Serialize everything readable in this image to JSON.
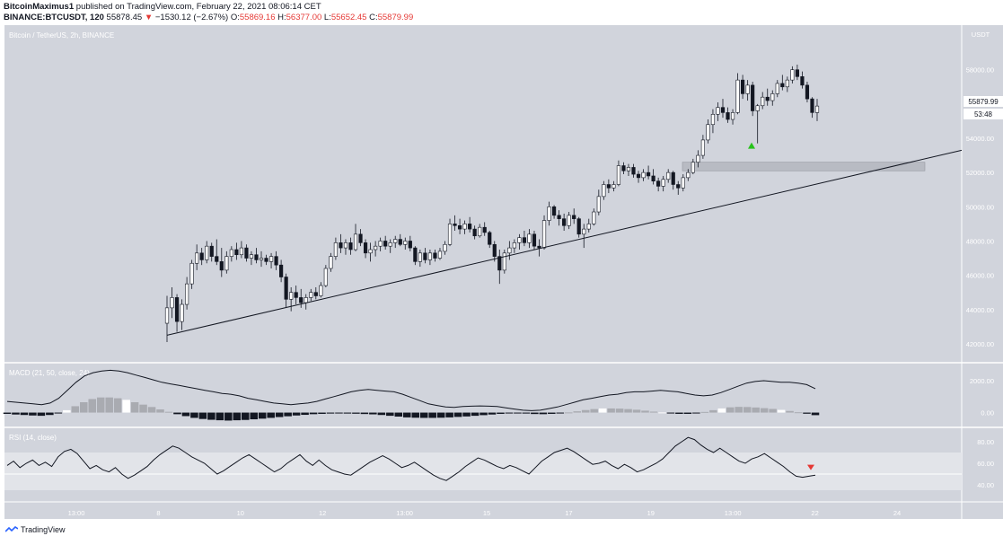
{
  "header": {
    "author": "BitcoinMaximus1",
    "published": "published on TradingView.com, February 22, 2021 08:06:14 CET",
    "symbol": "BINANCE:BTCUSDT, 120",
    "last": "55878.45",
    "change": "−1530.12 (−2.67%)",
    "o_label": "O:",
    "o": "55869.16",
    "h_label": "H:",
    "h": "56377.00",
    "l_label": "L:",
    "l": "55652.45",
    "c_label": "C:",
    "c": "55879.99"
  },
  "footer": {
    "brand": "TradingView"
  },
  "colors": {
    "background": "#d1d4dc",
    "up_body": "#ffffff",
    "down_body": "#131722",
    "trendline": "#131722",
    "buy_signal": "#26c21a",
    "sell_signal": "#e53935"
  },
  "chart_data": {
    "type": "candlestick",
    "title": "Bitcoin / TetherUS, 2h, BINANCE",
    "price_axis_unit": "USDT",
    "ylim": [
      41000,
      60500
    ],
    "y_ticks": [
      "58000.00",
      "56000.00",
      "54000.00",
      "52000.00",
      "50000.00",
      "48000.00",
      "46000.00",
      "44000.00",
      "42000.00"
    ],
    "x_ticks": [
      "13:00",
      "8",
      "10",
      "12",
      "13:00",
      "15",
      "17",
      "19",
      "13:00",
      "22",
      "24"
    ],
    "last_price_label": "55879.99",
    "countdown_label": "53:48",
    "grid": false,
    "trendline": {
      "from_price": 42500,
      "to_price": 53300,
      "description": "ascending support line"
    },
    "resistance_zone": {
      "low": 52100,
      "high": 52600
    },
    "buy_signal_price": 53600,
    "candles": [
      [
        43200,
        44800,
        42100,
        44100
      ],
      [
        44100,
        45300,
        43500,
        44700
      ],
      [
        44700,
        44900,
        42700,
        43300
      ],
      [
        43300,
        44600,
        42800,
        44300
      ],
      [
        44300,
        45900,
        44000,
        45500
      ],
      [
        45500,
        46900,
        45200,
        46700
      ],
      [
        46700,
        47800,
        46300,
        47300
      ],
      [
        47300,
        47600,
        46600,
        46900
      ],
      [
        46900,
        48000,
        46700,
        47700
      ],
      [
        47700,
        47900,
        46800,
        47100
      ],
      [
        47100,
        48100,
        46600,
        46800
      ],
      [
        46800,
        47600,
        45900,
        46300
      ],
      [
        46300,
        47400,
        46100,
        47100
      ],
      [
        47100,
        47700,
        46800,
        47500
      ],
      [
        47500,
        47900,
        46900,
        47200
      ],
      [
        47200,
        48000,
        47000,
        47600
      ],
      [
        47600,
        47800,
        46800,
        47000
      ],
      [
        47000,
        47400,
        46600,
        47200
      ],
      [
        47200,
        47600,
        46700,
        46900
      ],
      [
        46900,
        47400,
        46500,
        47000
      ],
      [
        47000,
        47200,
        46600,
        46800
      ],
      [
        46800,
        47300,
        46400,
        47100
      ],
      [
        47100,
        47400,
        46300,
        46600
      ],
      [
        46600,
        46900,
        45600,
        45900
      ],
      [
        45900,
        46100,
        44100,
        44600
      ],
      [
        44600,
        45300,
        43900,
        45000
      ],
      [
        45000,
        45400,
        44300,
        44700
      ],
      [
        44700,
        45200,
        44100,
        44400
      ],
      [
        44400,
        44900,
        44000,
        44700
      ],
      [
        44700,
        45200,
        44500,
        45000
      ],
      [
        45000,
        45300,
        44600,
        44800
      ],
      [
        44800,
        45600,
        44700,
        45400
      ],
      [
        45400,
        46600,
        45300,
        46400
      ],
      [
        46400,
        47300,
        46200,
        47100
      ],
      [
        47100,
        48200,
        46900,
        47900
      ],
      [
        47900,
        48400,
        47300,
        47600
      ],
      [
        47600,
        48100,
        47200,
        47900
      ],
      [
        47900,
        48200,
        47200,
        47500
      ],
      [
        47500,
        49000,
        47400,
        48400
      ],
      [
        48400,
        48700,
        47700,
        47900
      ],
      [
        47900,
        48100,
        47000,
        47300
      ],
      [
        47300,
        47900,
        46800,
        47500
      ],
      [
        47500,
        48000,
        47100,
        47700
      ],
      [
        47700,
        48200,
        47400,
        48000
      ],
      [
        48000,
        48300,
        47500,
        47700
      ],
      [
        47700,
        48100,
        47300,
        47900
      ],
      [
        47900,
        48300,
        47600,
        48100
      ],
      [
        48100,
        48400,
        47700,
        47800
      ],
      [
        47800,
        48200,
        47500,
        48000
      ],
      [
        48000,
        48300,
        47400,
        47600
      ],
      [
        47600,
        47700,
        46600,
        46800
      ],
      [
        46800,
        47500,
        46500,
        47300
      ],
      [
        47300,
        47600,
        46700,
        46900
      ],
      [
        46900,
        47500,
        46600,
        47300
      ],
      [
        47300,
        47500,
        46800,
        47000
      ],
      [
        47000,
        47600,
        46900,
        47400
      ],
      [
        47400,
        48000,
        47200,
        47800
      ],
      [
        47800,
        49300,
        47700,
        49000
      ],
      [
        49000,
        49500,
        48600,
        48900
      ],
      [
        48900,
        49300,
        48400,
        48700
      ],
      [
        48700,
        49200,
        48400,
        49000
      ],
      [
        49000,
        49400,
        48500,
        48700
      ],
      [
        48700,
        48900,
        48100,
        48300
      ],
      [
        48300,
        49000,
        48200,
        48800
      ],
      [
        48800,
        49100,
        48300,
        48500
      ],
      [
        48500,
        48600,
        47600,
        47800
      ],
      [
        47800,
        48000,
        46800,
        47100
      ],
      [
        47100,
        47500,
        45500,
        46300
      ],
      [
        46300,
        47500,
        46100,
        47300
      ],
      [
        47300,
        48000,
        46900,
        47600
      ],
      [
        47600,
        48100,
        47300,
        47900
      ],
      [
        47900,
        48400,
        47500,
        48200
      ],
      [
        48200,
        48600,
        47700,
        47900
      ],
      [
        47900,
        48700,
        47600,
        48400
      ],
      [
        48400,
        48600,
        47500,
        47700
      ],
      [
        47700,
        48100,
        47100,
        47600
      ],
      [
        47600,
        49500,
        47500,
        49200
      ],
      [
        49200,
        50300,
        48900,
        50000
      ],
      [
        50000,
        50100,
        49300,
        49500
      ],
      [
        49500,
        49800,
        48900,
        49300
      ],
      [
        49300,
        49600,
        48600,
        48900
      ],
      [
        48900,
        49700,
        48700,
        49500
      ],
      [
        49500,
        49900,
        49000,
        49300
      ],
      [
        49300,
        49400,
        48200,
        48400
      ],
      [
        48400,
        49000,
        47600,
        48700
      ],
      [
        48700,
        49300,
        48500,
        49000
      ],
      [
        49000,
        49900,
        48900,
        49700
      ],
      [
        49700,
        51000,
        49500,
        50600
      ],
      [
        50600,
        51500,
        50400,
        51300
      ],
      [
        51300,
        51600,
        50800,
        51100
      ],
      [
        51100,
        51500,
        50900,
        51300
      ],
      [
        51300,
        52700,
        51200,
        52400
      ],
      [
        52400,
        52600,
        51900,
        52100
      ],
      [
        52100,
        52500,
        51800,
        52300
      ],
      [
        52300,
        52500,
        51700,
        51900
      ],
      [
        51900,
        52100,
        51400,
        51700
      ],
      [
        51700,
        52200,
        51500,
        52000
      ],
      [
        52000,
        52400,
        51600,
        51800
      ],
      [
        51800,
        52200,
        51300,
        51500
      ],
      [
        51500,
        51700,
        50900,
        51200
      ],
      [
        51200,
        51800,
        50900,
        51600
      ],
      [
        51600,
        52200,
        51400,
        52000
      ],
      [
        52000,
        52100,
        51000,
        51300
      ],
      [
        51300,
        51500,
        50700,
        51100
      ],
      [
        51100,
        51900,
        50900,
        51700
      ],
      [
        51700,
        52200,
        51500,
        52000
      ],
      [
        52000,
        52800,
        51900,
        52600
      ],
      [
        52600,
        53300,
        52300,
        53000
      ],
      [
        53000,
        54200,
        52800,
        53900
      ],
      [
        53900,
        55100,
        53700,
        54800
      ],
      [
        54800,
        55700,
        54300,
        55400
      ],
      [
        55400,
        56100,
        55000,
        55800
      ],
      [
        55800,
        56300,
        55200,
        55500
      ],
      [
        55500,
        55800,
        54900,
        55100
      ],
      [
        55100,
        55700,
        54800,
        55500
      ],
      [
        55500,
        57800,
        55400,
        57400
      ],
      [
        57400,
        57700,
        56300,
        56600
      ],
      [
        56600,
        57400,
        56200,
        57100
      ],
      [
        57100,
        57300,
        55300,
        55600
      ],
      [
        55600,
        56000,
        53700,
        55900
      ],
      [
        55900,
        56700,
        55700,
        56400
      ],
      [
        56400,
        56900,
        55900,
        56200
      ],
      [
        56200,
        56800,
        55900,
        56600
      ],
      [
        56600,
        57400,
        56400,
        57200
      ],
      [
        57200,
        57700,
        56800,
        57000
      ],
      [
        57000,
        57600,
        56700,
        57400
      ],
      [
        57400,
        58200,
        57200,
        58000
      ],
      [
        58000,
        58300,
        57400,
        57600
      ],
      [
        57600,
        57900,
        56900,
        57100
      ],
      [
        57100,
        57300,
        56100,
        56300
      ],
      [
        56300,
        56400,
        55200,
        55500
      ],
      [
        55500,
        56300,
        55000,
        55880
      ]
    ],
    "macd": {
      "label": "MACD (21, 50, close, 24)",
      "y_ticks": [
        "2000.00",
        "0.00"
      ],
      "ylim": [
        -700,
        2900
      ],
      "macd_line": [
        700,
        650,
        600,
        550,
        500,
        600,
        900,
        1400,
        1900,
        2300,
        2500,
        2600,
        2650,
        2600,
        2500,
        2350,
        2200,
        2050,
        1900,
        1800,
        1700,
        1600,
        1500,
        1400,
        1300,
        1200,
        1150,
        1050,
        900,
        800,
        700,
        600,
        550,
        500,
        550,
        600,
        700,
        850,
        1000,
        1150,
        1300,
        1400,
        1450,
        1400,
        1350,
        1300,
        1150,
        950,
        750,
        550,
        450,
        350,
        330,
        380,
        400,
        420,
        400,
        380,
        300,
        220,
        150,
        120,
        150,
        250,
        350,
        500,
        650,
        800,
        900,
        1000,
        1100,
        1150,
        1250,
        1300,
        1300,
        1350,
        1400,
        1350,
        1300,
        1200,
        1100,
        1050,
        1100,
        1250,
        1450,
        1650,
        1850,
        1950,
        2000,
        1950,
        1900,
        1900,
        1850,
        1750,
        1500
      ],
      "histogram": [
        -80,
        -120,
        -150,
        -180,
        -200,
        -150,
        -50,
        150,
        400,
        650,
        850,
        950,
        950,
        900,
        800,
        650,
        500,
        350,
        200,
        50,
        -100,
        -220,
        -330,
        -400,
        -450,
        -480,
        -500,
        -480,
        -460,
        -420,
        -380,
        -330,
        -280,
        -230,
        -180,
        -140,
        -100,
        -80,
        -60,
        -50,
        -60,
        -70,
        -90,
        -110,
        -150,
        -200,
        -250,
        -300,
        -320,
        -330,
        -330,
        -320,
        -300,
        -270,
        -240,
        -200,
        -160,
        -120,
        -80,
        -50,
        -40,
        -60,
        -90,
        -100,
        -80,
        -40,
        10,
        80,
        160,
        220,
        260,
        260,
        250,
        220,
        180,
        120,
        60,
        10,
        -40,
        -80,
        -80,
        -40,
        40,
        150,
        260,
        330,
        360,
        350,
        320,
        280,
        230,
        170,
        100,
        20,
        -70,
        -160
      ]
    },
    "rsi": {
      "label": "RSI (14, close)",
      "y_ticks": [
        "80.00",
        "60.00",
        "40.00"
      ],
      "ylim": [
        35,
        90
      ],
      "band": [
        30,
        70
      ],
      "values": [
        58,
        62,
        56,
        60,
        63,
        58,
        61,
        57,
        66,
        71,
        73,
        69,
        62,
        55,
        58,
        54,
        52,
        56,
        50,
        46,
        49,
        53,
        57,
        63,
        68,
        72,
        76,
        74,
        70,
        66,
        63,
        60,
        55,
        50,
        53,
        57,
        61,
        65,
        68,
        64,
        60,
        56,
        52,
        55,
        60,
        64,
        68,
        62,
        58,
        63,
        58,
        54,
        52,
        50,
        49,
        53,
        57,
        61,
        64,
        67,
        64,
        60,
        56,
        58,
        61,
        57,
        53,
        49,
        46,
        44,
        48,
        52,
        57,
        61,
        65,
        63,
        60,
        57,
        55,
        58,
        56,
        53,
        50,
        56,
        62,
        66,
        70,
        72,
        74,
        71,
        67,
        63,
        59,
        60,
        62,
        58,
        55,
        59,
        56,
        52,
        54,
        57,
        60,
        64,
        70,
        76,
        80,
        84,
        82,
        77,
        73,
        70,
        74,
        70,
        66,
        62,
        60,
        64,
        66,
        69,
        65,
        61,
        57,
        52,
        48,
        47,
        48,
        49
      ]
    }
  }
}
